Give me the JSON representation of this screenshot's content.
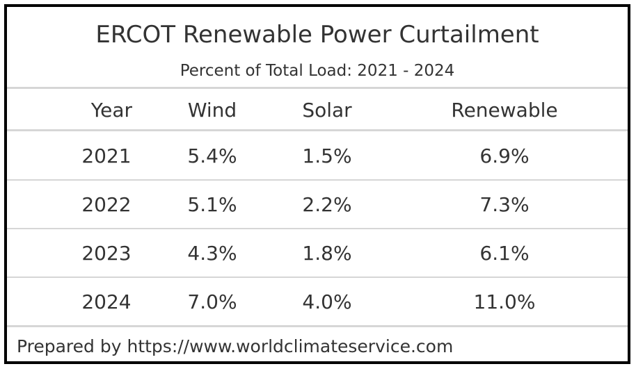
{
  "chart_data": {
    "type": "table",
    "title": "ERCOT Renewable Power Curtailment",
    "subtitle": "Percent of Total Load: 2021 - 2024",
    "columns": [
      "Year",
      "Wind",
      "Solar",
      "Renewable"
    ],
    "rows": [
      [
        "2021",
        "5.4%",
        "1.5%",
        "6.9%"
      ],
      [
        "2022",
        "5.1%",
        "2.2%",
        "7.3%"
      ],
      [
        "2023",
        "4.3%",
        "1.8%",
        "6.1%"
      ],
      [
        "2024",
        "7.0%",
        "4.0%",
        "11.0%"
      ]
    ],
    "footer": "Prepared by https://www.worldclimateservice.com"
  }
}
